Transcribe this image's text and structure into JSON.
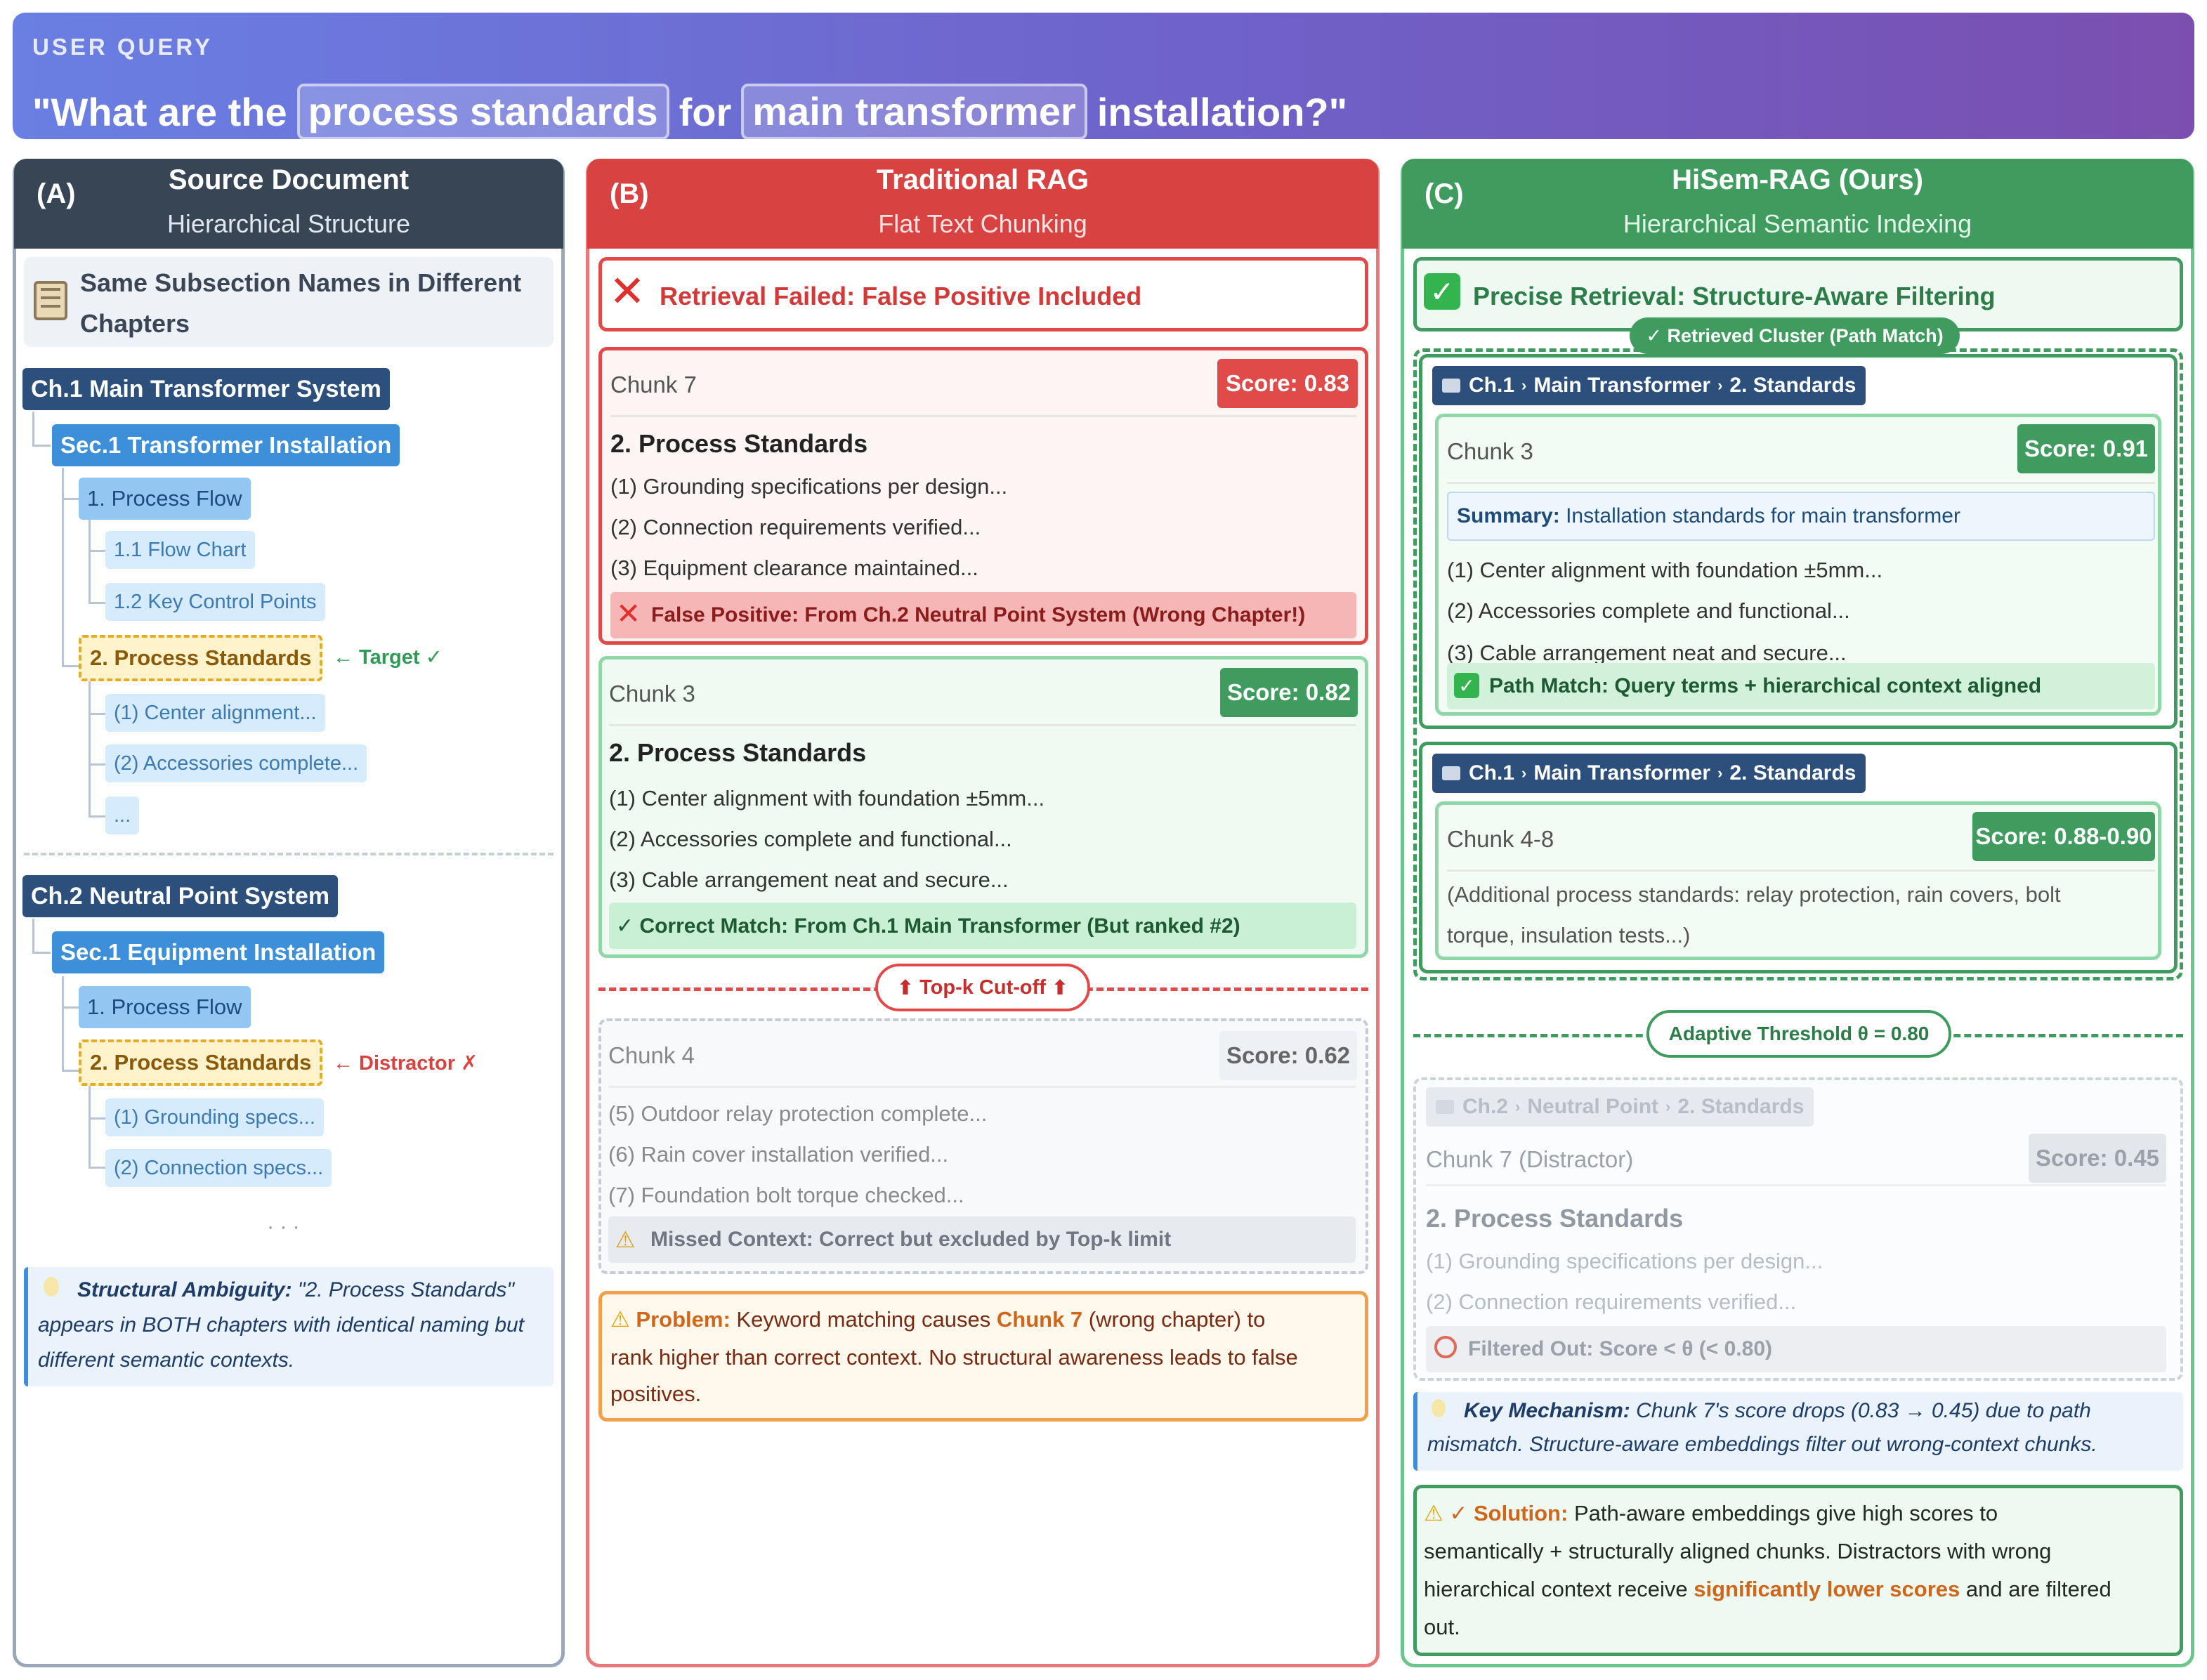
{
  "header": {
    "label": "USER QUERY",
    "q_part1": "\"What are the",
    "q_hl1": "process standards",
    "q_part2": "for",
    "q_hl2": "main transformer",
    "q_part3": "installation?\""
  },
  "colA": {
    "tag": "(A)",
    "title": "Source Document",
    "subtitle": "Hierarchical Structure",
    "banner": "Same Subsection Names in Different Chapters",
    "ch1": "Ch.1 Main Transformer System",
    "ch1_sec": "Sec.1 Transformer Installation",
    "ch1_flow": "1. Process Flow",
    "ch1_flow_chart": "1.1 Flow Chart",
    "ch1_key": "1.2 Key Control Points",
    "ch1_std": "2. Process Standards",
    "target_note": "← Target ✓",
    "ch1_leaf1": "(1) Center alignment...",
    "ch1_leaf2": "(2) Accessories complete...",
    "ch1_leaf3": "...",
    "ch2": "Ch.2 Neutral Point System",
    "ch2_sec": "Sec.1 Equipment Installation",
    "ch2_flow": "1. Process Flow",
    "ch2_std": "2. Process Standards",
    "distractor_note": "← Distractor ✗",
    "ch2_leaf1": "(1) Grounding specs...",
    "ch2_leaf2": "(2) Connection specs...",
    "ellipsis": "· · ·",
    "note_bold": "Structural Ambiguity:",
    "note_line1": "\"2. Process Standards\"",
    "note_line2": "appears in BOTH chapters with identical naming but",
    "note_line3": "different semantic contexts."
  },
  "colB": {
    "tag": "(B)",
    "title": "Traditional RAG",
    "subtitle": "Flat Text Chunking",
    "fail": "Retrieval Failed: False Positive Included",
    "c7_name": "Chunk 7",
    "c7_score": "Score: 0.83",
    "c7_head": "2. Process Standards",
    "c7_l1": "(1) Grounding specifications per design...",
    "c7_l2": "(2) Connection requirements verified...",
    "c7_l3": "(3) Equipment clearance maintained...",
    "c7_fp": "False Positive: From Ch.2 Neutral Point System (Wrong Chapter!)",
    "c3_name": "Chunk 3",
    "c3_score": "Score: 0.82",
    "c3_head": "2. Process Standards",
    "c3_l1": "(1) Center alignment with foundation ±5mm...",
    "c3_l2": "(2) Accessories complete and functional...",
    "c3_l3": "(3) Cable arrangement neat and secure...",
    "c3_ok": "✓ Correct Match: From Ch.1 Main Transformer (But ranked #2)",
    "cutoff": "Top-k Cut-off",
    "c4_name": "Chunk 4",
    "c4_score": "Score: 0.62",
    "c4_l1": "(5) Outdoor relay protection complete...",
    "c4_l2": "(6) Rain cover installation verified...",
    "c4_l3": "(7) Foundation bolt torque checked...",
    "c4_miss": "Missed Context: Correct but excluded by Top-k limit",
    "prob_label": "Problem:",
    "prob_a": "Keyword matching causes",
    "prob_b": "Chunk 7",
    "prob_c": "(wrong chapter) to",
    "prob_l2": "rank higher than correct context. No structural awareness leads to false",
    "prob_l3": "positives."
  },
  "colC": {
    "tag": "(C)",
    "title": "HiSem-RAG (Ours)",
    "subtitle": "Hierarchical Semantic Indexing",
    "precise": "Precise Retrieval: Structure-Aware Filtering",
    "cluster": "✓ Retrieved Cluster (Path Match)",
    "path_ch": "Ch.1",
    "path_mid": "Main Transformer",
    "path_end": "2. Standards",
    "c3_name": "Chunk 3",
    "c3_score": "Score: 0.91",
    "sum_label": "Summary:",
    "sum_text": "Installation standards for main transformer",
    "c3_l1": "(1) Center alignment with foundation ±5mm...",
    "c3_l2": "(2) Accessories complete and functional...",
    "c3_l3": "(3) Cable arrangement neat and secure...",
    "c3_match": "Path Match: Query terms + hierarchical context aligned",
    "c48_name": "Chunk 4-8",
    "c48_score": "Score: 0.88-0.90",
    "c48_l1": "(Additional process standards: relay protection, rain covers, bolt",
    "c48_l2": "torque, insulation tests...)",
    "threshold": "Adaptive Threshold θ = 0.80",
    "d_ch": "Ch.2",
    "d_mid": "Neutral Point",
    "d_end": "2. Standards",
    "d_name": "Chunk 7 (Distractor)",
    "d_score": "Score: 0.45",
    "d_head": "2. Process Standards",
    "d_l1": "(1) Grounding specifications per design...",
    "d_l2": "(2) Connection requirements verified...",
    "d_filter": "Filtered Out: Score < θ (< 0.80)",
    "km_label": "Key Mechanism:",
    "km_l1": "Chunk 7's score drops (0.83 → 0.45) due to path",
    "km_l2": "mismatch. Structure-aware embeddings filter out wrong-context chunks.",
    "sol_label": "✓ Solution:",
    "sol_l1": "Path-aware embeddings give high scores to",
    "sol_l2": "semantically + structurally aligned chunks. Distractors with wrong",
    "sol_l3a": "hierarchical context receive",
    "sol_l3b": "significantly lower scores",
    "sol_l3c": "and are filtered",
    "sol_l4": "out."
  },
  "colors": {
    "red": "#d84341",
    "green": "#3f9c5e",
    "navy": "#374555",
    "purple": "#6f62c9"
  }
}
